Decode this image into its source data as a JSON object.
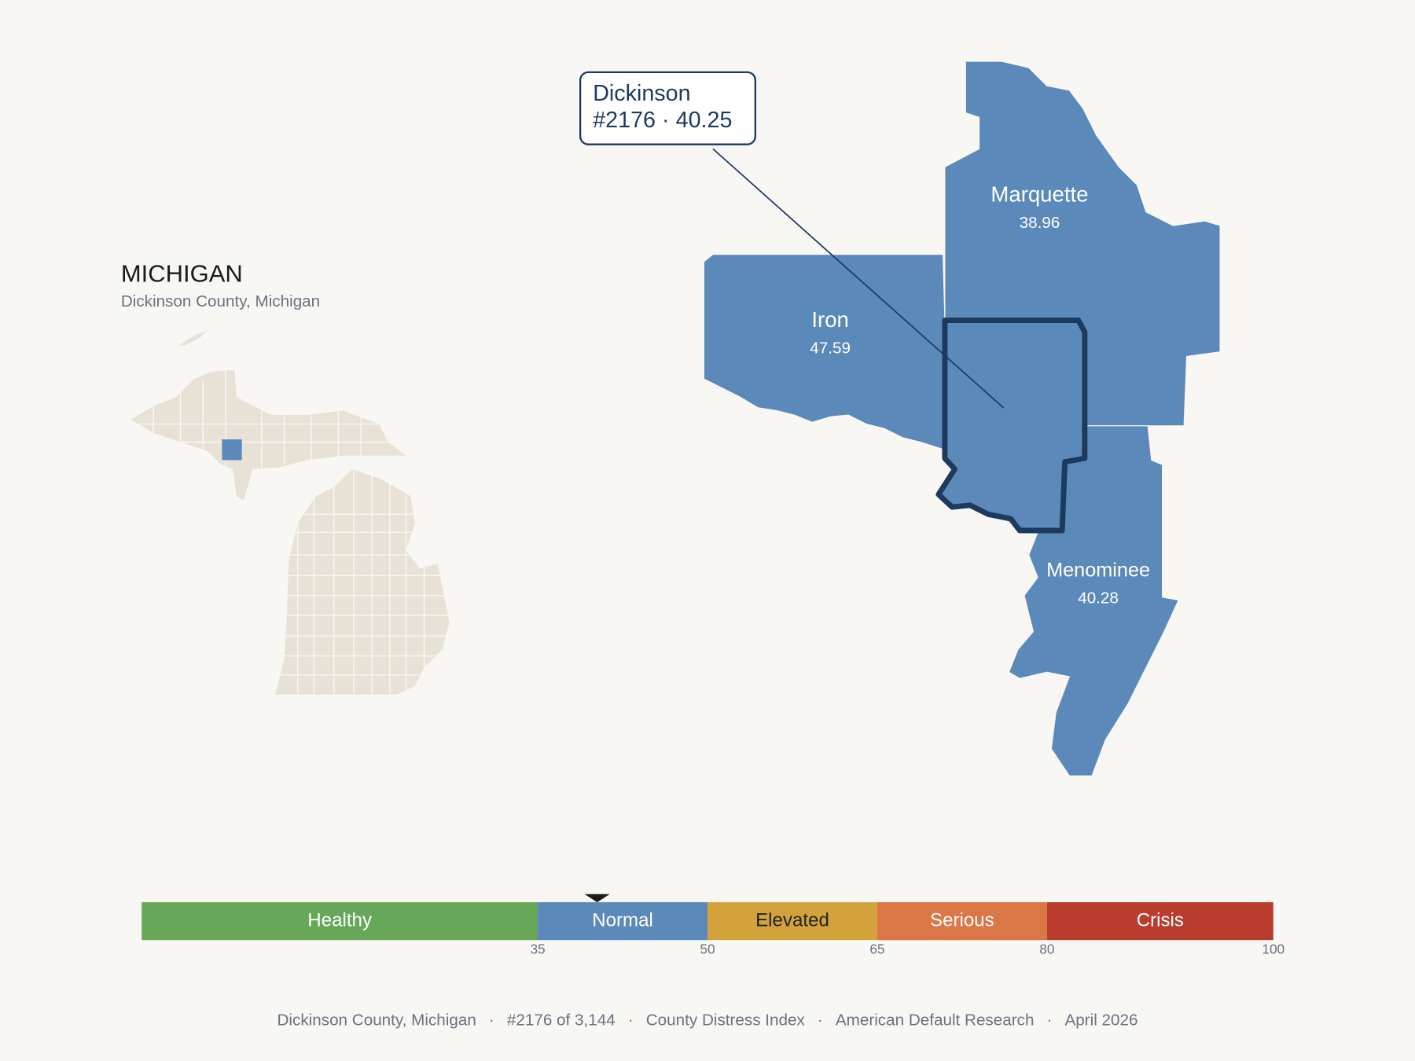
{
  "title": "MICHIGAN",
  "subtitle": "Dickinson County, Michigan",
  "highlight": {
    "name": "Dickinson",
    "rank": "#2176",
    "separator": "·",
    "value": 40.25
  },
  "neighbors": [
    {
      "name": "Marquette",
      "value": 38.96
    },
    {
      "name": "Iron",
      "value": 47.59
    },
    {
      "name": "Menominee",
      "value": 40.28
    }
  ],
  "scale": {
    "xlim": [
      0,
      100
    ],
    "xticks": [
      35,
      50,
      65,
      80,
      100
    ],
    "segments": [
      {
        "label": "Healthy",
        "color": "#67a75a",
        "text_color": "#ffffff"
      },
      {
        "label": "Normal",
        "color": "#5b89b9",
        "text_color": "#ffffff"
      },
      {
        "label": "Elevated",
        "color": "#d4a23a",
        "text_color": "#1f2328"
      },
      {
        "label": "Serious",
        "color": "#dc7647",
        "text_color": "#ffffff"
      },
      {
        "label": "Crisis",
        "color": "#b93c2c",
        "text_color": "#ffffff"
      }
    ]
  },
  "footer": {
    "items": [
      "Dickinson County, Michigan",
      "#2176 of 3,144",
      "County Distress Index",
      "American Default Research",
      "April 2026"
    ],
    "separator": "·"
  }
}
